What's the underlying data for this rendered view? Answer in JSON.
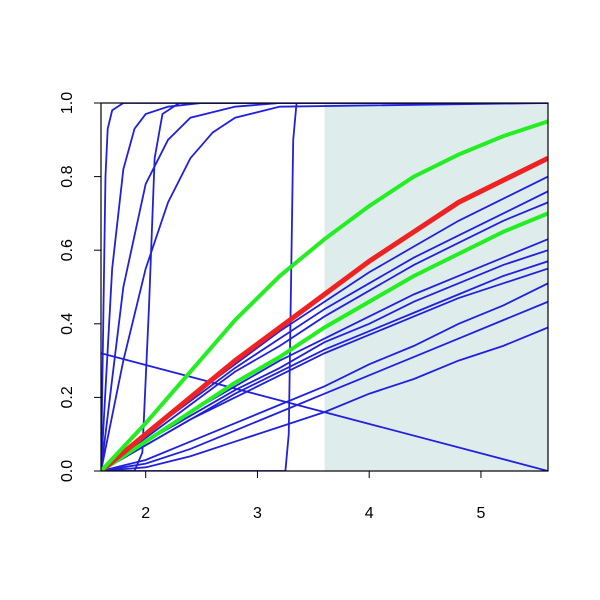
{
  "chart_data": {
    "type": "line",
    "x": [
      1.6,
      2.0,
      2.4,
      2.8,
      3.2,
      3.6,
      4.0,
      4.4,
      4.8,
      5.2,
      5.6
    ],
    "xlim": [
      1.6,
      5.6
    ],
    "ylim": [
      0,
      1
    ],
    "xticks": [
      2,
      3,
      4,
      5
    ],
    "yticks": [
      {
        "value": 0,
        "label": "0.0"
      },
      0.2,
      0.4,
      0.6,
      0.8,
      {
        "value": 1,
        "label": "1.0"
      }
    ],
    "shade": [
      3.6,
      5.6
    ],
    "shade_color": "#dfecec",
    "series": [
      {
        "color": "#2020dd",
        "values": [
          0,
          0.1,
          0.2,
          0.29,
          0.38,
          0.46,
          0.54,
          0.61,
          0.68,
          0.74,
          0.8
        ]
      },
      {
        "color": "#2020dd",
        "values": [
          0,
          0.1,
          0.19,
          0.28,
          0.36,
          0.44,
          0.51,
          0.58,
          0.64,
          0.7,
          0.76
        ]
      },
      {
        "color": "#2020dd",
        "values": [
          0,
          0.09,
          0.18,
          0.27,
          0.34,
          0.42,
          0.49,
          0.56,
          0.62,
          0.68,
          0.73
        ]
      },
      {
        "color": "#2020dd",
        "values": [
          0,
          0.08,
          0.16,
          0.23,
          0.3,
          0.36,
          0.42,
          0.48,
          0.53,
          0.58,
          0.63
        ]
      },
      {
        "color": "#2020dd",
        "values": [
          0,
          0.08,
          0.15,
          0.22,
          0.28,
          0.35,
          0.4,
          0.46,
          0.51,
          0.56,
          0.6
        ]
      },
      {
        "color": "#2020dd",
        "values": [
          0,
          0.07,
          0.14,
          0.21,
          0.27,
          0.33,
          0.38,
          0.43,
          0.48,
          0.53,
          0.57
        ]
      },
      {
        "color": "#2020dd",
        "values": [
          0,
          0.07,
          0.14,
          0.2,
          0.26,
          0.32,
          0.37,
          0.42,
          0.47,
          0.51,
          0.55
        ]
      },
      {
        "color": "#2020dd",
        "values": [
          0,
          0.03,
          0.08,
          0.13,
          0.18,
          0.23,
          0.29,
          0.34,
          0.4,
          0.45,
          0.51
        ]
      },
      {
        "color": "#2020dd",
        "values": [
          0,
          0.02,
          0.06,
          0.11,
          0.16,
          0.21,
          0.26,
          0.31,
          0.36,
          0.41,
          0.46
        ]
      },
      {
        "color": "#2020dd",
        "values": [
          0,
          0.01,
          0.04,
          0.08,
          0.12,
          0.16,
          0.21,
          0.25,
          0.3,
          0.34,
          0.39
        ]
      },
      {
        "color": "#2020dd",
        "x": [
          1.6,
          5.6
        ],
        "values": [
          0.32,
          0
        ]
      },
      {
        "color": "#2020dd",
        "x": [
          1.6,
          1.62,
          1.64,
          1.66,
          1.7,
          1.75,
          1.8,
          5.6
        ],
        "values": [
          0,
          0.4,
          0.8,
          0.93,
          0.98,
          0.99,
          1,
          1
        ]
      },
      {
        "color": "#2020dd",
        "x": [
          1.6,
          1.7,
          1.8,
          1.9,
          2.0,
          2.2,
          2.5,
          5.6
        ],
        "values": [
          0,
          0.55,
          0.82,
          0.93,
          0.97,
          0.99,
          1,
          1
        ]
      },
      {
        "color": "#2020dd",
        "x": [
          1.6,
          1.8,
          2.0,
          2.2,
          2.4,
          2.8,
          3.2,
          5.6
        ],
        "values": [
          0,
          0.5,
          0.78,
          0.9,
          0.96,
          0.99,
          1,
          1
        ]
      },
      {
        "color": "#2020dd",
        "x": [
          1.6,
          1.8,
          2.0,
          2.2,
          2.4,
          2.6,
          2.8,
          3.2,
          5.6
        ],
        "values": [
          0,
          0.3,
          0.55,
          0.73,
          0.85,
          0.92,
          0.96,
          0.99,
          1
        ]
      },
      {
        "color": "#2020dd",
        "x": [
          1.6,
          1.9,
          1.97,
          2.03,
          2.08,
          2.15,
          2.3,
          5.6
        ],
        "values": [
          0,
          0,
          0.05,
          0.45,
          0.85,
          0.97,
          1,
          1
        ]
      },
      {
        "color": "#2020dd",
        "x": [
          1.6,
          3.25,
          3.28,
          3.3,
          3.32,
          3.35,
          5.6
        ],
        "values": [
          0,
          0,
          0.1,
          0.5,
          0.9,
          1,
          1
        ]
      },
      {
        "color": "#22ee22",
        "width": 4,
        "values": [
          0,
          0.08,
          0.16,
          0.24,
          0.31,
          0.39,
          0.46,
          0.53,
          0.59,
          0.65,
          0.7
        ]
      },
      {
        "color": "#ee2222",
        "width": 5,
        "values": [
          0,
          0.1,
          0.2,
          0.3,
          0.39,
          0.48,
          0.57,
          0.65,
          0.73,
          0.79,
          0.85
        ]
      },
      {
        "color": "#22ee22",
        "width": 4,
        "values": [
          0,
          0.13,
          0.27,
          0.41,
          0.53,
          0.63,
          0.72,
          0.8,
          0.86,
          0.91,
          0.95
        ]
      }
    ]
  }
}
